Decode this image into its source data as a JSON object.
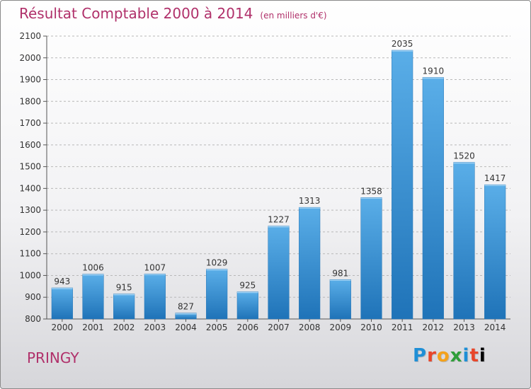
{
  "header": {
    "title": "Résultat Comptable 2000 à 2014",
    "unit": "(en milliers d'€)"
  },
  "footer": {
    "location": "PRINGY",
    "logo": "Proxiti"
  },
  "colors": {
    "title": "#b0306a",
    "bar_top": "#5aaee8",
    "bar_bottom": "#1f73b8",
    "grid": "#b8b8b8"
  },
  "chart_data": {
    "type": "bar",
    "title": "Résultat Comptable 2000 à 2014",
    "subtitle": "(en milliers d'€)",
    "xlabel": "",
    "ylabel": "",
    "categories": [
      "2000",
      "2001",
      "2002",
      "2003",
      "2004",
      "2005",
      "2006",
      "2007",
      "2008",
      "2009",
      "2010",
      "2011",
      "2012",
      "2013",
      "2014"
    ],
    "values": [
      943,
      1006,
      915,
      1007,
      827,
      1029,
      925,
      1227,
      1313,
      981,
      1358,
      2035,
      1910,
      1520,
      1417
    ],
    "ylim": [
      800,
      2100
    ],
    "yticks": [
      800,
      900,
      1000,
      1100,
      1200,
      1300,
      1400,
      1500,
      1600,
      1700,
      1800,
      1900,
      2000,
      2100
    ],
    "grid": "horizontal-dashed",
    "legend": "none",
    "data_labels": true
  }
}
